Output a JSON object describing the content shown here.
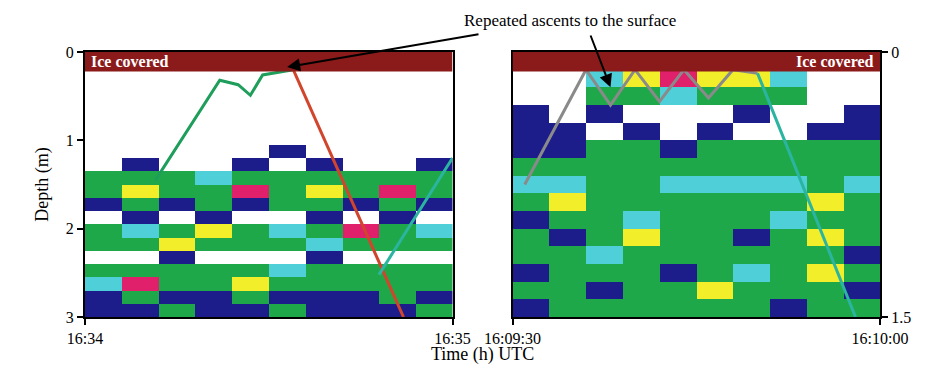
{
  "chart_data": {
    "type": "heatmap",
    "xlabel": "Time (h) UTC",
    "ylabel": "Depth (m)",
    "annotation": {
      "text": "Repeated ascents to the surface",
      "targets": [
        {
          "panel": 0,
          "x": "16:34:33",
          "y": 0.17
        },
        {
          "panel": 1,
          "x": "16:09:38",
          "y": 0.2
        }
      ]
    },
    "ice": {
      "label": "Ice covered",
      "color": "#8b1a1a"
    },
    "zlim": [
      0,
      5
    ],
    "colors": [
      "#ffffff",
      "#1c1c8a",
      "#1fa84a",
      "#4fd0d8",
      "#f2ef2a",
      "#e0206a"
    ],
    "panels": [
      {
        "xlim": [
          "16:34:00",
          "16:35:00"
        ],
        "xticks": [
          {
            "value": "16:34:00",
            "label": "16:34"
          },
          {
            "value": "16:35:00",
            "label": "16:35"
          }
        ],
        "ylim": [
          0,
          3
        ],
        "yticks": [
          0,
          1,
          2,
          3
        ],
        "ice_depth": 0.22,
        "heatmap": {
          "x": [
            "16:34:03",
            "16:34:09",
            "16:34:15",
            "16:34:21",
            "16:34:27",
            "16:34:33",
            "16:34:39",
            "16:34:45",
            "16:34:51",
            "16:34:57"
          ],
          "y": [
            0.075,
            0.225,
            0.375,
            0.525,
            0.675,
            0.825,
            0.975,
            1.125,
            1.275,
            1.425,
            1.575,
            1.725,
            1.875,
            2.025,
            2.175,
            2.325,
            2.475,
            2.625,
            2.775,
            2.925
          ],
          "z": [
            [
              0,
              0,
              0,
              0,
              0,
              0,
              0,
              0,
              0,
              0
            ],
            [
              0,
              0,
              0,
              0,
              0,
              0,
              0,
              0,
              0,
              0
            ],
            [
              0,
              0,
              0,
              0,
              0,
              0,
              0,
              0,
              0,
              0
            ],
            [
              0,
              0,
              0,
              0,
              0,
              0,
              0,
              0,
              0,
              0
            ],
            [
              0,
              0,
              0,
              0,
              0,
              0,
              0,
              0,
              0,
              0
            ],
            [
              0,
              0,
              0,
              0,
              0,
              0,
              0,
              0,
              0,
              0
            ],
            [
              0,
              0,
              0,
              0,
              0,
              0,
              0,
              0,
              0,
              0
            ],
            [
              0,
              0,
              0,
              0,
              0,
              1,
              0,
              0,
              0,
              0
            ],
            [
              0,
              1,
              0,
              0,
              1,
              0,
              1,
              0,
              0,
              1
            ],
            [
              2,
              2,
              2,
              3,
              2,
              2,
              2,
              2,
              2,
              2
            ],
            [
              2,
              4,
              2,
              2,
              5,
              2,
              4,
              2,
              5,
              2
            ],
            [
              1,
              2,
              1,
              2,
              1,
              2,
              2,
              1,
              2,
              1
            ],
            [
              0,
              1,
              0,
              1,
              0,
              0,
              1,
              0,
              1,
              0
            ],
            [
              2,
              3,
              2,
              4,
              2,
              3,
              2,
              5,
              2,
              3
            ],
            [
              2,
              2,
              4,
              2,
              2,
              2,
              3,
              2,
              2,
              2
            ],
            [
              0,
              0,
              1,
              0,
              0,
              0,
              1,
              0,
              0,
              0
            ],
            [
              2,
              2,
              2,
              2,
              2,
              3,
              2,
              2,
              2,
              2
            ],
            [
              3,
              5,
              2,
              2,
              4,
              2,
              2,
              2,
              2,
              2
            ],
            [
              1,
              2,
              1,
              1,
              2,
              1,
              1,
              1,
              2,
              1
            ],
            [
              1,
              1,
              2,
              1,
              1,
              2,
              1,
              1,
              1,
              2
            ]
          ]
        },
        "series": [
          {
            "color": "#1e9e5a",
            "x": [
              "16:34:11.5",
              "16:34:22",
              "16:34:25",
              "16:34:27",
              "16:34:29",
              "16:34:34"
            ],
            "values": [
              1.45,
              0.32,
              0.37,
              0.49,
              0.26,
              0.2
            ]
          },
          {
            "color": "#d2452d",
            "x": [
              "16:34:34",
              "16:34:52"
            ],
            "values": [
              0.2,
              3
            ]
          },
          {
            "color": "#2bb5a0",
            "x": [
              "16:34:48",
              "16:35:00"
            ],
            "values": [
              2.52,
              1.2
            ]
          }
        ]
      },
      {
        "xlim": [
          "16:09:30",
          "16:10:00"
        ],
        "xticks": [
          {
            "value": "16:09:30",
            "label": "16:09:30"
          },
          {
            "value": "16:10:00",
            "label": "16:10:00"
          }
        ],
        "ylim": [
          0,
          1.5
        ],
        "yticks": [
          0,
          1.5
        ],
        "ice_depth": 0.11,
        "heatmap": {
          "x": [
            "16:09:31.5",
            "16:09:34.5",
            "16:09:37.5",
            "16:09:40.5",
            "16:09:43.5",
            "16:09:46.5",
            "16:09:49.5",
            "16:09:52.5",
            "16:09:55.5",
            "16:09:58.5"
          ],
          "y": [
            0.05,
            0.15,
            0.25,
            0.35,
            0.45,
            0.55,
            0.65,
            0.75,
            0.85,
            0.95,
            1.05,
            1.15,
            1.25,
            1.35,
            1.45
          ],
          "z": [
            [
              0,
              0,
              0,
              0,
              0,
              0,
              0,
              0,
              0,
              0
            ],
            [
              0,
              0,
              3,
              4,
              5,
              4,
              4,
              3,
              0,
              0
            ],
            [
              0,
              0,
              2,
              2,
              3,
              2,
              2,
              2,
              0,
              0
            ],
            [
              1,
              0,
              1,
              0,
              0,
              0,
              1,
              0,
              0,
              1
            ],
            [
              1,
              1,
              0,
              1,
              0,
              1,
              0,
              0,
              1,
              1
            ],
            [
              1,
              1,
              2,
              2,
              1,
              2,
              2,
              2,
              2,
              2
            ],
            [
              2,
              2,
              2,
              2,
              2,
              2,
              2,
              2,
              2,
              2
            ],
            [
              3,
              3,
              2,
              2,
              3,
              3,
              3,
              3,
              2,
              3
            ],
            [
              2,
              4,
              2,
              2,
              2,
              2,
              2,
              2,
              4,
              2
            ],
            [
              1,
              2,
              2,
              3,
              2,
              2,
              2,
              3,
              2,
              2
            ],
            [
              2,
              1,
              2,
              4,
              2,
              2,
              1,
              2,
              4,
              2
            ],
            [
              2,
              2,
              3,
              2,
              2,
              2,
              2,
              2,
              2,
              1
            ],
            [
              1,
              2,
              2,
              2,
              1,
              2,
              3,
              2,
              4,
              2
            ],
            [
              2,
              2,
              1,
              2,
              2,
              4,
              2,
              2,
              2,
              1
            ],
            [
              1,
              2,
              2,
              2,
              2,
              2,
              2,
              1,
              2,
              2
            ]
          ]
        },
        "series": [
          {
            "color": "#8a8a8a",
            "x": [
              "16:09:31",
              "16:09:36",
              "16:09:38",
              "16:09:40",
              "16:09:42",
              "16:09:44",
              "16:09:46",
              "16:09:48",
              "16:09:50"
            ],
            "values": [
              0.75,
              0.1,
              0.3,
              0.1,
              0.28,
              0.1,
              0.26,
              0.1,
              0.12
            ]
          },
          {
            "color": "#2bb5a0",
            "x": [
              "16:09:50",
              "16:09:58"
            ],
            "values": [
              0.12,
              1.5
            ]
          }
        ]
      }
    ]
  }
}
